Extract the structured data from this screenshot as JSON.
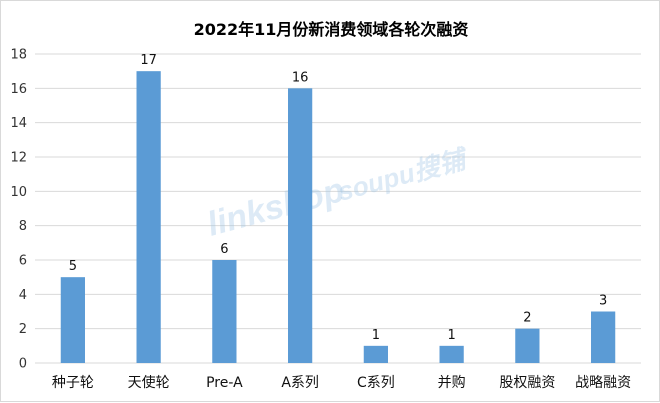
{
  "chart_data": {
    "type": "bar",
    "title": "2022年11月份新消费领域各轮次融资",
    "categories": [
      "种子轮",
      "天使轮",
      "Pre-A",
      "A系列",
      "C系列",
      "并购",
      "股权融资",
      "战略融资"
    ],
    "values": [
      5,
      17,
      6,
      16,
      1,
      1,
      2,
      3
    ],
    "ylim": [
      0,
      18
    ],
    "yticks": [
      0,
      2,
      4,
      6,
      8,
      10,
      12,
      14,
      16,
      18
    ],
    "grid": true,
    "bar_color": "#5b9bd5",
    "grid_color": "#d9d9d9"
  },
  "watermark": {
    "left": "linkshop",
    "right": "soupu搜铺"
  }
}
